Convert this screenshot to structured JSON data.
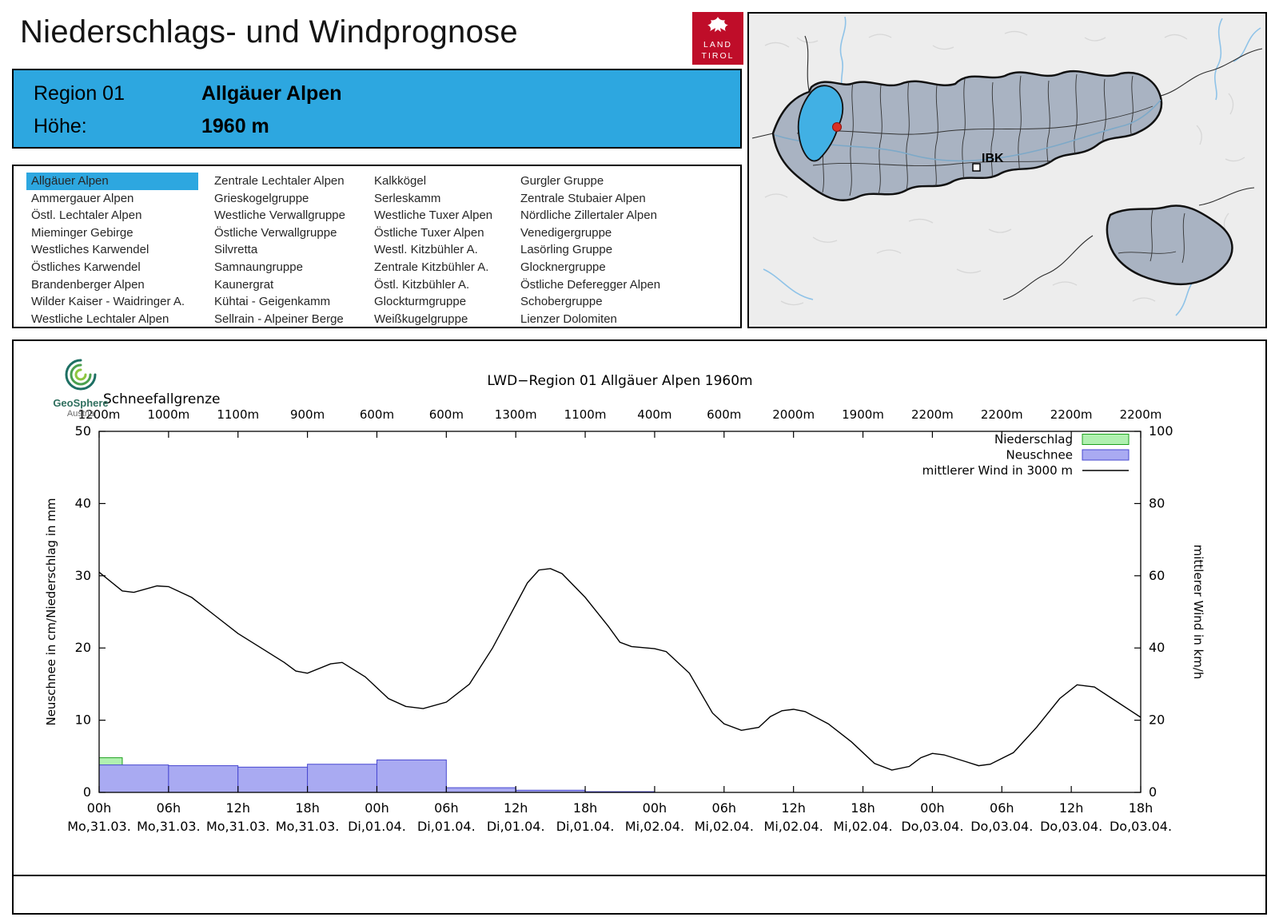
{
  "page": {
    "title": "Niederschlags- und Windprognose"
  },
  "logo_land_tirol": {
    "line1": "LAND",
    "line2": "TIROL"
  },
  "region_header": {
    "label_region": "Region 01",
    "region_name": "Allgäuer Alpen",
    "label_hoehe": "Höhe:",
    "hoehe_value": "1960 m"
  },
  "map": {
    "city_label": "IBK"
  },
  "region_list": {
    "selected": "Allgäuer Alpen",
    "columns": [
      [
        "Allgäuer Alpen",
        "Ammergauer Alpen",
        "Östl. Lechtaler Alpen",
        "Mieminger Gebirge",
        "Westliches Karwendel",
        "Östliches Karwendel",
        "Brandenberger Alpen",
        "Wilder Kaiser - Waidringer A.",
        "Westliche Lechtaler Alpen"
      ],
      [
        "Zentrale Lechtaler Alpen",
        "Grieskogelgruppe",
        "Westliche Verwallgruppe",
        "Östliche Verwallgruppe",
        "Silvretta",
        "Samnaungruppe",
        "Kaunergrat",
        "Kühtai - Geigenkamm",
        "Sellrain - Alpeiner Berge"
      ],
      [
        "Kalkkögel",
        "Serleskamm",
        "Westliche Tuxer Alpen",
        "Östliche Tuxer Alpen",
        "Westl. Kitzbühler A.",
        "Zentrale Kitzbühler A.",
        "Östl. Kitzbühler A.",
        "Glockturmgruppe",
        "Weißkugelgruppe"
      ],
      [
        "Gurgler Gruppe",
        "Zentrale Stubaier Alpen",
        "Nördliche Zillertaler Alpen",
        "Venedigergruppe",
        "Lasörling Gruppe",
        "Glocknergruppe",
        "Östliche Deferegger Alpen",
        "Schobergruppe",
        "Lienzer Dolomiten"
      ]
    ]
  },
  "geosphere": {
    "name": "GeoSphere",
    "sub": "Austria"
  },
  "colors": {
    "accent_blue": "#2da7e0",
    "brand_red": "#bf0d29",
    "map_region_fill": "#a9b3c2",
    "map_highlight": "#41b0e4",
    "bar_green_fill": "#b0f0b0",
    "bar_green_stroke": "#1ea01e",
    "bar_blue_fill": "#a9aaf2",
    "bar_blue_stroke": "#4848d0",
    "wind_line": "#000000"
  },
  "chart_data": {
    "type": "mixed",
    "title": "LWD−Region 01 Allgäuer Alpen 1960m",
    "snowline_label": "Schneefallgrenze",
    "snowline_values": [
      "1200m",
      "1000m",
      "1100m",
      "900m",
      "600m",
      "600m",
      "1300m",
      "1100m",
      "400m",
      "600m",
      "2000m",
      "1900m",
      "2200m",
      "2200m",
      "2200m",
      "2200m"
    ],
    "x_range_hours": [
      0,
      90
    ],
    "x_ticks": [
      {
        "hour": "00h",
        "date": "Mo,31.03."
      },
      {
        "hour": "06h",
        "date": "Mo,31.03."
      },
      {
        "hour": "12h",
        "date": "Mo,31.03."
      },
      {
        "hour": "18h",
        "date": "Mo,31.03."
      },
      {
        "hour": "00h",
        "date": "Di,01.04."
      },
      {
        "hour": "06h",
        "date": "Di,01.04."
      },
      {
        "hour": "12h",
        "date": "Di,01.04."
      },
      {
        "hour": "18h",
        "date": "Di,01.04."
      },
      {
        "hour": "00h",
        "date": "Mi,02.04."
      },
      {
        "hour": "06h",
        "date": "Mi,02.04."
      },
      {
        "hour": "12h",
        "date": "Mi,02.04."
      },
      {
        "hour": "18h",
        "date": "Mi,02.04."
      },
      {
        "hour": "00h",
        "date": "Do,03.04."
      },
      {
        "hour": "06h",
        "date": "Do,03.04."
      },
      {
        "hour": "12h",
        "date": "Do,03.04."
      },
      {
        "hour": "18h",
        "date": "Do,03.04."
      }
    ],
    "y_left": {
      "label": "Neuschnee in cm/Niederschlag in mm",
      "ticks": [
        0,
        10,
        20,
        30,
        40,
        50
      ],
      "range": [
        0,
        50
      ]
    },
    "y_right": {
      "label": "mittlerer Wind in km/h",
      "ticks": [
        0,
        20,
        40,
        60,
        80,
        100
      ],
      "range": [
        0,
        100
      ]
    },
    "legend": [
      {
        "label": "Niederschlag",
        "swatch": "box-green"
      },
      {
        "label": "Neuschnee",
        "swatch": "box-blue"
      },
      {
        "label": "mittlerer Wind in 3000 m",
        "swatch": "line-black"
      }
    ],
    "series": [
      {
        "name": "Niederschlag",
        "type": "bars",
        "unit": "mm",
        "axis": "left",
        "color_fill": "#b0f0b0",
        "color_stroke": "#1ea01e",
        "bars": [
          [
            0,
            2,
            4.8
          ]
        ]
      },
      {
        "name": "Neuschnee",
        "type": "bars",
        "unit": "cm",
        "axis": "left",
        "color_fill": "#a9aaf2",
        "color_stroke": "#4848d0",
        "bars": [
          [
            0,
            6,
            3.8
          ],
          [
            6,
            12,
            3.7
          ],
          [
            12,
            18,
            3.5
          ],
          [
            18,
            24,
            3.9
          ],
          [
            24,
            30,
            4.5
          ],
          [
            30,
            36,
            0.65
          ],
          [
            36,
            42,
            0.3
          ],
          [
            42,
            48,
            0.1
          ]
        ]
      },
      {
        "name": "mittlerer Wind in 3000 m",
        "type": "line",
        "unit": "km/h",
        "axis": "right",
        "color": "#000000",
        "points": [
          [
            0,
            61
          ],
          [
            2,
            55.8
          ],
          [
            3,
            55.4
          ],
          [
            5,
            57.2
          ],
          [
            6,
            57
          ],
          [
            8,
            54
          ],
          [
            10,
            49
          ],
          [
            12,
            44
          ],
          [
            14,
            40
          ],
          [
            16,
            36
          ],
          [
            17,
            33.6
          ],
          [
            18,
            33
          ],
          [
            20,
            35.6
          ],
          [
            21,
            36
          ],
          [
            23,
            32
          ],
          [
            25,
            26
          ],
          [
            26.5,
            23.8
          ],
          [
            28,
            23.2
          ],
          [
            30,
            25
          ],
          [
            32,
            30
          ],
          [
            34,
            40
          ],
          [
            36,
            52
          ],
          [
            37,
            58
          ],
          [
            38,
            61.6
          ],
          [
            39,
            62
          ],
          [
            40,
            60.6
          ],
          [
            42,
            54
          ],
          [
            44,
            46
          ],
          [
            45,
            41.6
          ],
          [
            46,
            40.4
          ],
          [
            48,
            39.8
          ],
          [
            49,
            39
          ],
          [
            51,
            33
          ],
          [
            53,
            22
          ],
          [
            54,
            19
          ],
          [
            55.5,
            17.2
          ],
          [
            57,
            18
          ],
          [
            58,
            21
          ],
          [
            59,
            22.6
          ],
          [
            60,
            23
          ],
          [
            61,
            22.4
          ],
          [
            63,
            19
          ],
          [
            65,
            14
          ],
          [
            67,
            8
          ],
          [
            68.5,
            6.2
          ],
          [
            70,
            7.2
          ],
          [
            71,
            9.6
          ],
          [
            72,
            10.8
          ],
          [
            73,
            10.4
          ],
          [
            75,
            8.4
          ],
          [
            76,
            7.4
          ],
          [
            77,
            7.8
          ],
          [
            79,
            11
          ],
          [
            81,
            18
          ],
          [
            83,
            26
          ],
          [
            84.5,
            29.8
          ],
          [
            86,
            29.2
          ],
          [
            88,
            25
          ],
          [
            90,
            20.8
          ]
        ]
      }
    ]
  }
}
